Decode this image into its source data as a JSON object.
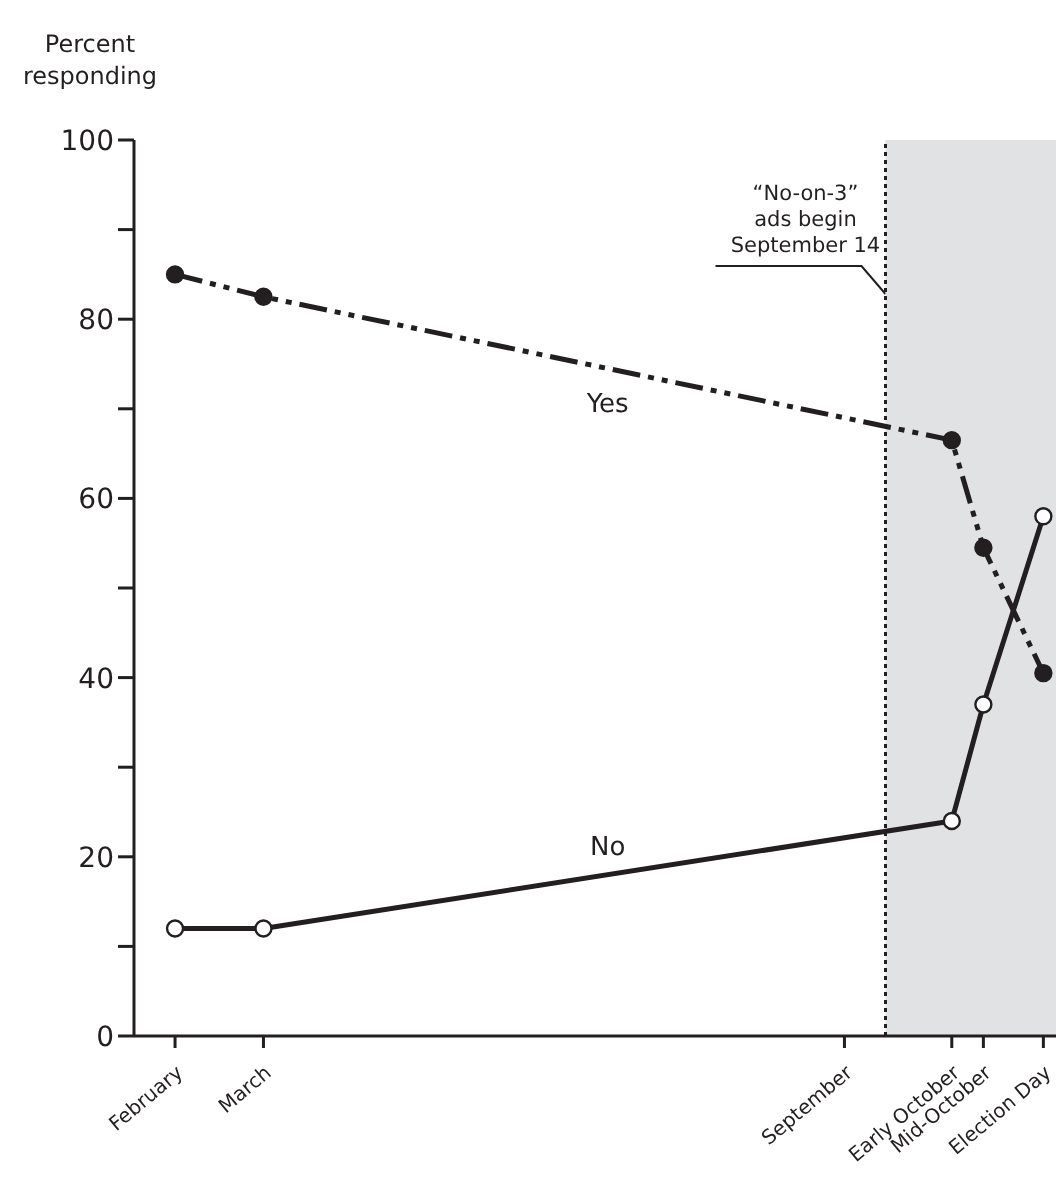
{
  "chart_data": {
    "type": "line",
    "ylabel": "Percent\nresponding",
    "x": [
      "--02-01",
      "--03-01",
      "--10-05",
      "--10-15",
      "--11-03"
    ],
    "series": [
      {
        "name": "Yes",
        "color": "#231f20",
        "values": [
          85,
          82.5,
          66.5,
          54.5,
          40.5
        ],
        "line_style": "dashed"
      },
      {
        "name": "No",
        "color": "#231f20",
        "values": [
          12,
          12,
          24,
          37,
          58
        ],
        "line_style": "solid"
      }
    ],
    "marker": "circle",
    "xlim": [
      "--01-19",
      "--11-07"
    ],
    "xticks": [
      {
        "value": "--02-01",
        "label": "February"
      },
      {
        "value": "--03-01",
        "label": "March"
      },
      {
        "value": "--09-01",
        "label": "September"
      },
      {
        "value": "--10-05",
        "label": "Early October"
      },
      {
        "value": "--10-15",
        "label": "Mid-October"
      },
      {
        "value": "--11-03",
        "label": "Election Day"
      }
    ],
    "ylim": [
      0,
      100
    ],
    "yticks": [
      0,
      {
        "value": 10,
        "label": null
      },
      20,
      {
        "value": 30,
        "label": null
      },
      40,
      {
        "value": 50,
        "label": null
      },
      60,
      {
        "value": 70,
        "label": null
      },
      80,
      {
        "value": 90,
        "label": null
      },
      100
    ],
    "ref_lines": [
      {
        "axis": "x",
        "value": "--09-14",
        "label": "“No-on-3”\nads begin\nSeptember 14",
        "color": "#231f20",
        "line_style": "dotted"
      }
    ],
    "bands": [
      {
        "axis": "x",
        "from": "--09-14",
        "to": "--11-07",
        "color": "#e1e2e4"
      }
    ],
    "grid": false
  }
}
